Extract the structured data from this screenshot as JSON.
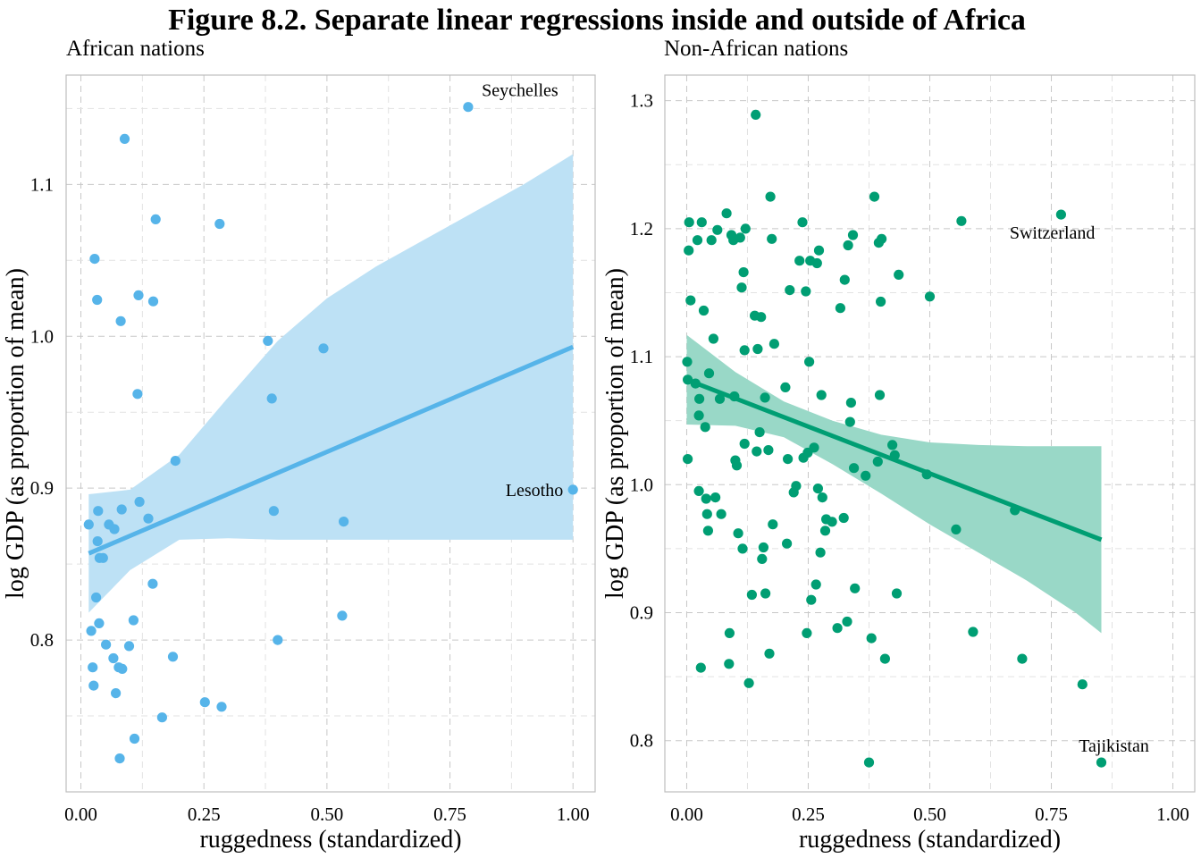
{
  "title": "Figure 8.2. Separate linear regressions inside and outside of Africa",
  "chart_data": [
    {
      "type": "scatter",
      "title": "African nations",
      "xlabel": "ruggedness (standardized)",
      "ylabel": "log GDP (as proportion of mean)",
      "xlim": [
        -0.03,
        1.045
      ],
      "ylim": [
        0.7,
        1.172
      ],
      "xticks": [
        0,
        0.25,
        0.5,
        0.75,
        1
      ],
      "xtick_labels": [
        "0.00",
        "0.25",
        "0.50",
        "0.75",
        "1.00"
      ],
      "yticks": [
        0.8,
        0.9,
        1.0,
        1.1
      ],
      "ytick_labels": [
        "0.8",
        "0.9",
        "1.0",
        "1.1"
      ],
      "grid": true,
      "color": "#56b4e9",
      "band_color": "#bde1f5",
      "points": [
        {
          "x": 0.016,
          "y": 0.876
        },
        {
          "x": 0.021,
          "y": 0.806
        },
        {
          "x": 0.024,
          "y": 0.782
        },
        {
          "x": 0.026,
          "y": 0.77
        },
        {
          "x": 0.028,
          "y": 1.051
        },
        {
          "x": 0.031,
          "y": 0.828
        },
        {
          "x": 0.033,
          "y": 1.024
        },
        {
          "x": 0.034,
          "y": 0.865
        },
        {
          "x": 0.035,
          "y": 0.885
        },
        {
          "x": 0.037,
          "y": 0.811
        },
        {
          "x": 0.038,
          "y": 0.854
        },
        {
          "x": 0.045,
          "y": 0.854
        },
        {
          "x": 0.051,
          "y": 0.797
        },
        {
          "x": 0.057,
          "y": 0.876
        },
        {
          "x": 0.066,
          "y": 0.788
        },
        {
          "x": 0.068,
          "y": 0.873
        },
        {
          "x": 0.071,
          "y": 0.765
        },
        {
          "x": 0.077,
          "y": 0.782
        },
        {
          "x": 0.079,
          "y": 0.722
        },
        {
          "x": 0.081,
          "y": 1.01
        },
        {
          "x": 0.083,
          "y": 0.886
        },
        {
          "x": 0.084,
          "y": 0.781
        },
        {
          "x": 0.089,
          "y": 1.13
        },
        {
          "x": 0.098,
          "y": 0.796
        },
        {
          "x": 0.107,
          "y": 0.813
        },
        {
          "x": 0.109,
          "y": 0.735
        },
        {
          "x": 0.115,
          "y": 0.962
        },
        {
          "x": 0.117,
          "y": 1.027
        },
        {
          "x": 0.119,
          "y": 0.891
        },
        {
          "x": 0.137,
          "y": 0.88
        },
        {
          "x": 0.146,
          "y": 0.837
        },
        {
          "x": 0.147,
          "y": 1.023
        },
        {
          "x": 0.152,
          "y": 1.077
        },
        {
          "x": 0.165,
          "y": 0.749
        },
        {
          "x": 0.187,
          "y": 0.789
        },
        {
          "x": 0.192,
          "y": 0.918
        },
        {
          "x": 0.252,
          "y": 0.759
        },
        {
          "x": 0.282,
          "y": 1.074
        },
        {
          "x": 0.286,
          "y": 0.756
        },
        {
          "x": 0.38,
          "y": 0.997
        },
        {
          "x": 0.388,
          "y": 0.959
        },
        {
          "x": 0.392,
          "y": 0.885
        },
        {
          "x": 0.4,
          "y": 0.8
        },
        {
          "x": 0.493,
          "y": 0.992
        },
        {
          "x": 0.531,
          "y": 0.816
        },
        {
          "x": 0.534,
          "y": 0.878
        },
        {
          "x": 0.787,
          "y": 1.151
        },
        {
          "x": 1.0,
          "y": 0.899
        }
      ],
      "fit": {
        "x": [
          0.016,
          1.0
        ],
        "y": [
          0.857,
          0.993
        ]
      },
      "band": {
        "x": [
          0.016,
          0.1,
          0.2,
          0.3,
          0.4,
          0.5,
          0.6,
          0.7,
          0.8,
          0.9,
          1.0
        ],
        "lower": [
          0.818,
          0.846,
          0.866,
          0.867,
          0.866,
          0.866,
          0.866,
          0.866,
          0.866,
          0.866,
          0.866
        ],
        "upper": [
          0.896,
          0.899,
          0.922,
          0.96,
          0.997,
          1.025,
          1.046,
          1.064,
          1.082,
          1.1,
          1.12
        ]
      },
      "annotations": [
        {
          "text": "Seychelles",
          "x": 0.787,
          "y": 1.151,
          "anchor": "above"
        },
        {
          "text": "Lesotho",
          "x": 1.0,
          "y": 0.899,
          "anchor": "left"
        }
      ]
    },
    {
      "type": "scatter",
      "title": "Non-African nations",
      "xlabel": "ruggedness (standardized)",
      "ylabel": "log GDP (as proportion of mean)",
      "xlim": [
        -0.045,
        1.045
      ],
      "ylim": [
        0.76,
        1.32
      ],
      "xticks": [
        0,
        0.25,
        0.5,
        0.75,
        1
      ],
      "xtick_labels": [
        "0.00",
        "0.25",
        "0.50",
        "0.75",
        "1.00"
      ],
      "yticks": [
        0.8,
        0.9,
        1.0,
        1.1,
        1.2,
        1.3
      ],
      "ytick_labels": [
        "0.8",
        "0.9",
        "1.0",
        "1.1",
        "1.2",
        "1.3"
      ],
      "grid": true,
      "color": "#009e73",
      "band_color": "#99d8c7",
      "points": [
        {
          "x": 0.001,
          "y": 1.096
        },
        {
          "x": 0.002,
          "y": 1.082
        },
        {
          "x": 0.002,
          "y": 1.02
        },
        {
          "x": 0.004,
          "y": 1.183
        },
        {
          "x": 0.005,
          "y": 1.205
        },
        {
          "x": 0.008,
          "y": 1.144
        },
        {
          "x": 0.018,
          "y": 1.079
        },
        {
          "x": 0.022,
          "y": 1.191
        },
        {
          "x": 0.025,
          "y": 1.054
        },
        {
          "x": 0.025,
          "y": 0.995
        },
        {
          "x": 0.026,
          "y": 1.067
        },
        {
          "x": 0.029,
          "y": 0.857
        },
        {
          "x": 0.031,
          "y": 1.205
        },
        {
          "x": 0.035,
          "y": 1.136
        },
        {
          "x": 0.038,
          "y": 1.045
        },
        {
          "x": 0.04,
          "y": 0.989
        },
        {
          "x": 0.042,
          "y": 0.977
        },
        {
          "x": 0.044,
          "y": 0.964
        },
        {
          "x": 0.046,
          "y": 1.087
        },
        {
          "x": 0.051,
          "y": 1.191
        },
        {
          "x": 0.055,
          "y": 1.114
        },
        {
          "x": 0.059,
          "y": 0.99
        },
        {
          "x": 0.063,
          "y": 1.199
        },
        {
          "x": 0.068,
          "y": 1.067
        },
        {
          "x": 0.071,
          "y": 0.977
        },
        {
          "x": 0.082,
          "y": 1.212
        },
        {
          "x": 0.087,
          "y": 0.86
        },
        {
          "x": 0.088,
          "y": 0.884
        },
        {
          "x": 0.092,
          "y": 1.195
        },
        {
          "x": 0.096,
          "y": 1.191
        },
        {
          "x": 0.098,
          "y": 1.069
        },
        {
          "x": 0.1,
          "y": 1.019
        },
        {
          "x": 0.103,
          "y": 1.015
        },
        {
          "x": 0.106,
          "y": 0.962
        },
        {
          "x": 0.11,
          "y": 1.193
        },
        {
          "x": 0.113,
          "y": 1.154
        },
        {
          "x": 0.115,
          "y": 0.95
        },
        {
          "x": 0.117,
          "y": 1.166
        },
        {
          "x": 0.119,
          "y": 1.105
        },
        {
          "x": 0.119,
          "y": 1.032
        },
        {
          "x": 0.121,
          "y": 1.2
        },
        {
          "x": 0.128,
          "y": 0.845
        },
        {
          "x": 0.134,
          "y": 0.914
        },
        {
          "x": 0.14,
          "y": 1.132
        },
        {
          "x": 0.142,
          "y": 1.289
        },
        {
          "x": 0.144,
          "y": 1.026
        },
        {
          "x": 0.146,
          "y": 1.106
        },
        {
          "x": 0.15,
          "y": 1.041
        },
        {
          "x": 0.153,
          "y": 1.131
        },
        {
          "x": 0.155,
          "y": 0.942
        },
        {
          "x": 0.158,
          "y": 0.951
        },
        {
          "x": 0.161,
          "y": 1.068
        },
        {
          "x": 0.162,
          "y": 0.915
        },
        {
          "x": 0.168,
          "y": 1.027
        },
        {
          "x": 0.17,
          "y": 0.868
        },
        {
          "x": 0.172,
          "y": 1.225
        },
        {
          "x": 0.175,
          "y": 1.192
        },
        {
          "x": 0.177,
          "y": 0.969
        },
        {
          "x": 0.18,
          "y": 1.11
        },
        {
          "x": 0.203,
          "y": 1.076
        },
        {
          "x": 0.206,
          "y": 0.954
        },
        {
          "x": 0.208,
          "y": 1.02
        },
        {
          "x": 0.212,
          "y": 1.152
        },
        {
          "x": 0.22,
          "y": 0.994
        },
        {
          "x": 0.225,
          "y": 0.999
        },
        {
          "x": 0.232,
          "y": 1.175
        },
        {
          "x": 0.238,
          "y": 1.205
        },
        {
          "x": 0.24,
          "y": 1.021
        },
        {
          "x": 0.245,
          "y": 1.151
        },
        {
          "x": 0.247,
          "y": 0.884
        },
        {
          "x": 0.249,
          "y": 1.025
        },
        {
          "x": 0.252,
          "y": 1.096
        },
        {
          "x": 0.254,
          "y": 1.175
        },
        {
          "x": 0.256,
          "y": 0.91
        },
        {
          "x": 0.262,
          "y": 1.029
        },
        {
          "x": 0.266,
          "y": 0.922
        },
        {
          "x": 0.268,
          "y": 1.173
        },
        {
          "x": 0.27,
          "y": 0.997
        },
        {
          "x": 0.272,
          "y": 1.183
        },
        {
          "x": 0.275,
          "y": 0.947
        },
        {
          "x": 0.277,
          "y": 1.07
        },
        {
          "x": 0.279,
          "y": 0.99
        },
        {
          "x": 0.285,
          "y": 0.964
        },
        {
          "x": 0.287,
          "y": 0.973
        },
        {
          "x": 0.299,
          "y": 0.971
        },
        {
          "x": 0.31,
          "y": 0.888
        },
        {
          "x": 0.316,
          "y": 1.138
        },
        {
          "x": 0.323,
          "y": 0.974
        },
        {
          "x": 0.325,
          "y": 1.16
        },
        {
          "x": 0.33,
          "y": 0.893
        },
        {
          "x": 0.332,
          "y": 1.187
        },
        {
          "x": 0.336,
          "y": 1.049
        },
        {
          "x": 0.338,
          "y": 1.064
        },
        {
          "x": 0.342,
          "y": 1.195
        },
        {
          "x": 0.344,
          "y": 1.013
        },
        {
          "x": 0.346,
          "y": 0.919
        },
        {
          "x": 0.368,
          "y": 1.007
        },
        {
          "x": 0.375,
          "y": 0.783
        },
        {
          "x": 0.38,
          "y": 0.88
        },
        {
          "x": 0.386,
          "y": 1.225
        },
        {
          "x": 0.393,
          "y": 1.018
        },
        {
          "x": 0.395,
          "y": 1.189
        },
        {
          "x": 0.397,
          "y": 1.07
        },
        {
          "x": 0.399,
          "y": 1.143
        },
        {
          "x": 0.401,
          "y": 1.192
        },
        {
          "x": 0.408,
          "y": 0.864
        },
        {
          "x": 0.423,
          "y": 1.031
        },
        {
          "x": 0.428,
          "y": 1.023
        },
        {
          "x": 0.432,
          "y": 0.915
        },
        {
          "x": 0.436,
          "y": 1.164
        },
        {
          "x": 0.494,
          "y": 1.008
        },
        {
          "x": 0.5,
          "y": 1.147
        },
        {
          "x": 0.554,
          "y": 0.965
        },
        {
          "x": 0.565,
          "y": 1.206
        },
        {
          "x": 0.589,
          "y": 0.885
        },
        {
          "x": 0.675,
          "y": 0.98
        },
        {
          "x": 0.69,
          "y": 0.864
        },
        {
          "x": 0.77,
          "y": 1.211
        },
        {
          "x": 0.814,
          "y": 0.844
        },
        {
          "x": 0.853,
          "y": 0.783
        }
      ],
      "fit": {
        "x": [
          0.0,
          0.853
        ],
        "y": [
          1.082,
          0.957
        ]
      },
      "band": {
        "x": [
          0.0,
          0.1,
          0.2,
          0.3,
          0.4,
          0.5,
          0.6,
          0.7,
          0.8,
          0.853
        ],
        "lower": [
          1.047,
          1.046,
          1.037,
          1.016,
          0.993,
          0.969,
          0.947,
          0.925,
          0.9,
          0.884
        ],
        "upper": [
          1.117,
          1.088,
          1.065,
          1.05,
          1.039,
          1.033,
          1.031,
          1.03,
          1.03,
          1.03
        ]
      },
      "annotations": [
        {
          "text": "Switzerland",
          "x": 0.77,
          "y": 1.211,
          "anchor": "below-left"
        },
        {
          "text": "Tajikistan",
          "x": 0.853,
          "y": 0.783,
          "anchor": "above"
        }
      ]
    }
  ]
}
